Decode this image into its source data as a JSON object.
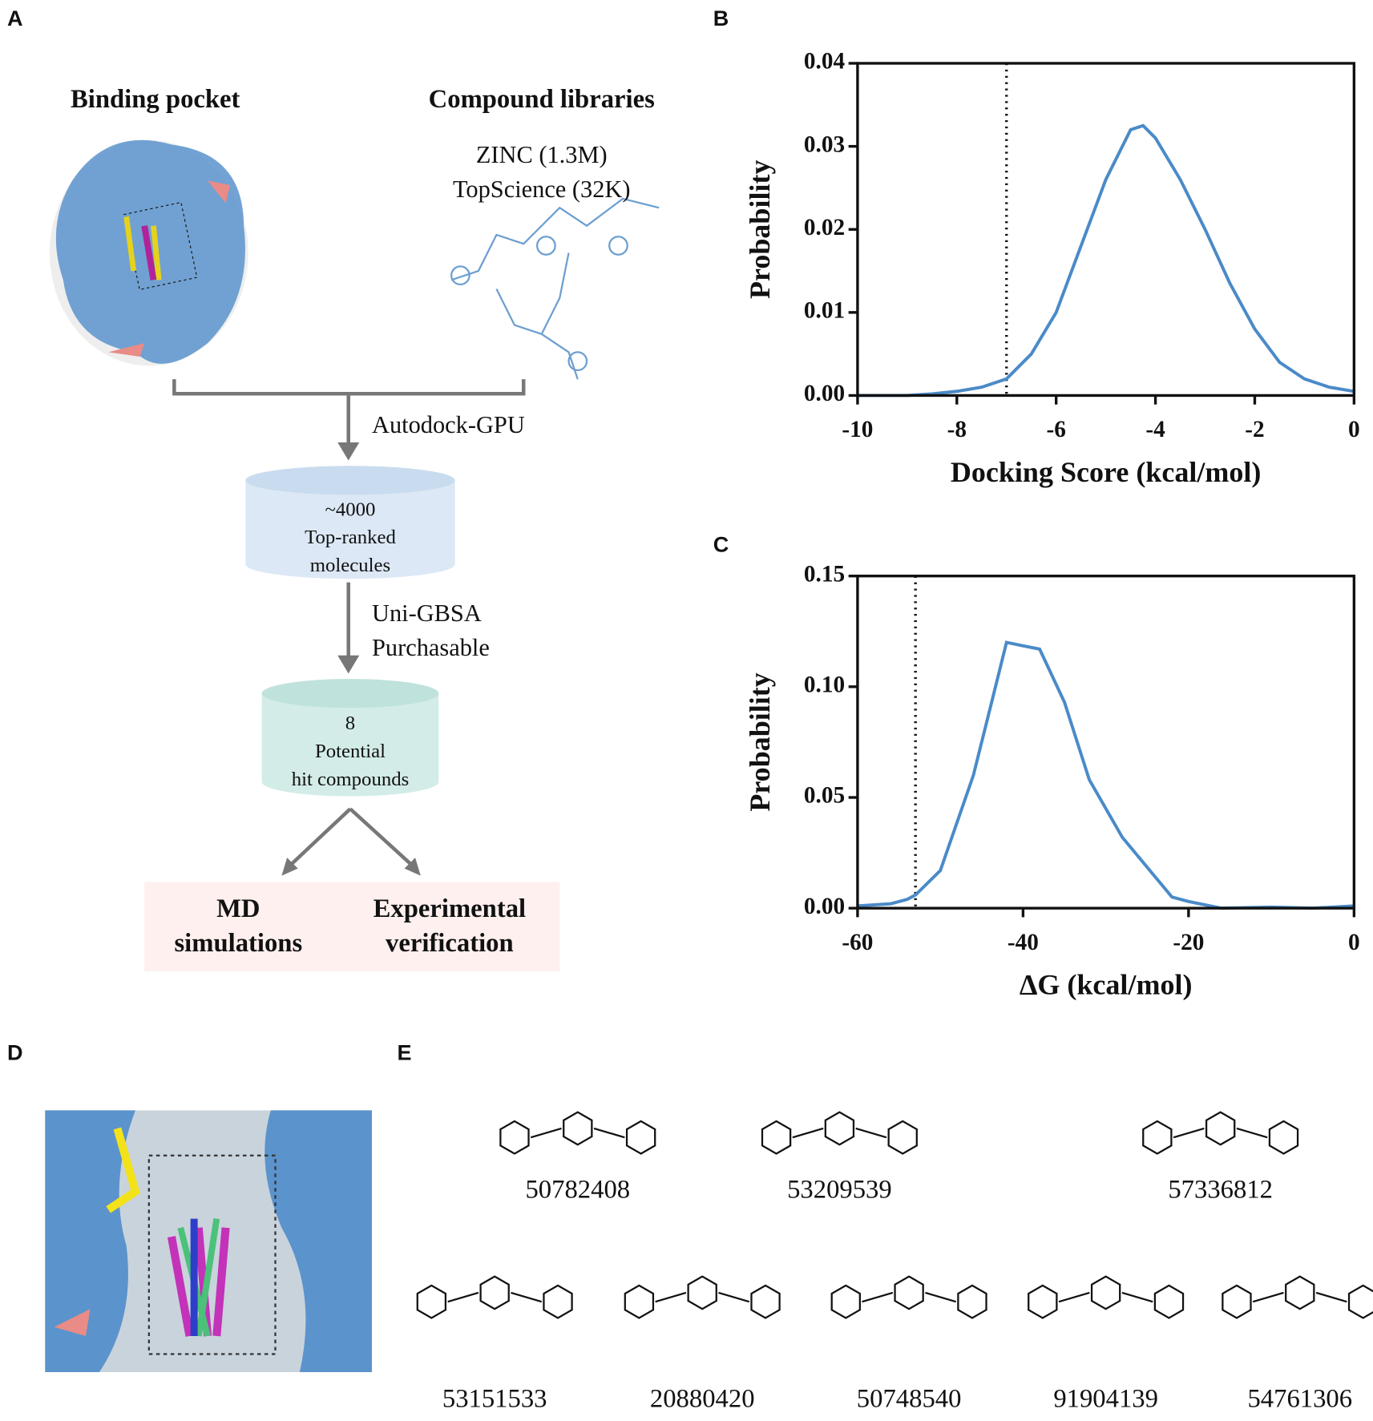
{
  "panels": [
    "A",
    "B",
    "C",
    "D",
    "E"
  ],
  "flow": {
    "pocket_title": "Binding pocket",
    "library_title": "Compound libraries",
    "libraries": [
      "ZINC (1.3M)",
      "TopScience (32K)"
    ],
    "step1": "Autodock-GPU",
    "box1": [
      "~4000",
      "Top-ranked",
      "molecules"
    ],
    "step2": [
      "Uni-GBSA",
      "Purchasable"
    ],
    "box2": [
      "8",
      "Potential",
      "hit compounds"
    ],
    "out1": [
      "MD",
      "simulations"
    ],
    "out2": [
      "Experimental",
      "verification"
    ]
  },
  "chart_data": [
    {
      "type": "line",
      "xlabel": "Docking Score (kcal/mol)",
      "ylabel": "Probability",
      "color": "#4a8ac8",
      "x": [
        -10,
        -9,
        -8.5,
        -8,
        -7.5,
        -7,
        -6.5,
        -6,
        -5.5,
        -5,
        -4.5,
        -4.25,
        -4,
        -3.5,
        -3,
        -2.5,
        -2,
        -1.5,
        -1,
        -0.5,
        0
      ],
      "values": [
        0,
        0,
        0.0002,
        0.0005,
        0.001,
        0.002,
        0.005,
        0.01,
        0.018,
        0.026,
        0.032,
        0.0325,
        0.031,
        0.026,
        0.02,
        0.0135,
        0.008,
        0.004,
        0.002,
        0.001,
        0.0005
      ],
      "reference_line": -7,
      "xlim": [
        -10,
        0
      ],
      "xticks": [
        -10,
        -8,
        -6,
        -4,
        -2,
        0
      ],
      "ylim": [
        0,
        0.04
      ],
      "yticks": [
        {
          "value": 0,
          "label": "0.00"
        },
        {
          "value": 0.01,
          "label": "0.01"
        },
        {
          "value": 0.02,
          "label": "0.02"
        },
        {
          "value": 0.03,
          "label": "0.03"
        },
        {
          "value": 0.04,
          "label": "0.04"
        }
      ]
    },
    {
      "type": "line",
      "xlabel": "ΔG (kcal/mol)",
      "ylabel": "Probability",
      "color": "#4a8ac8",
      "x": [
        -60,
        -56,
        -54,
        -53,
        -50,
        -46,
        -44,
        -42,
        -38,
        -35,
        -32,
        -28,
        -24,
        -22,
        -20,
        -16,
        -10,
        -5,
        0
      ],
      "values": [
        0.001,
        0.002,
        0.004,
        0.006,
        0.017,
        0.06,
        0.09,
        0.12,
        0.117,
        0.093,
        0.058,
        0.032,
        0.014,
        0.005,
        0.003,
        0,
        0.0005,
        0,
        0.001
      ],
      "reference_line": -53,
      "xlim": [
        -60,
        0
      ],
      "xticks": [
        -60,
        -40,
        -20,
        0
      ],
      "ylim": [
        0,
        0.15
      ],
      "yticks": [
        {
          "value": 0,
          "label": "0.00"
        },
        {
          "value": 0.05,
          "label": "0.05"
        },
        {
          "value": 0.1,
          "label": "0.10"
        },
        {
          "value": 0.15,
          "label": "0.15"
        }
      ]
    }
  ],
  "compounds": [
    "50782408",
    "53209539",
    "57336812",
    "53151533",
    "20880420",
    "50748540",
    "91904139",
    "54761306"
  ]
}
